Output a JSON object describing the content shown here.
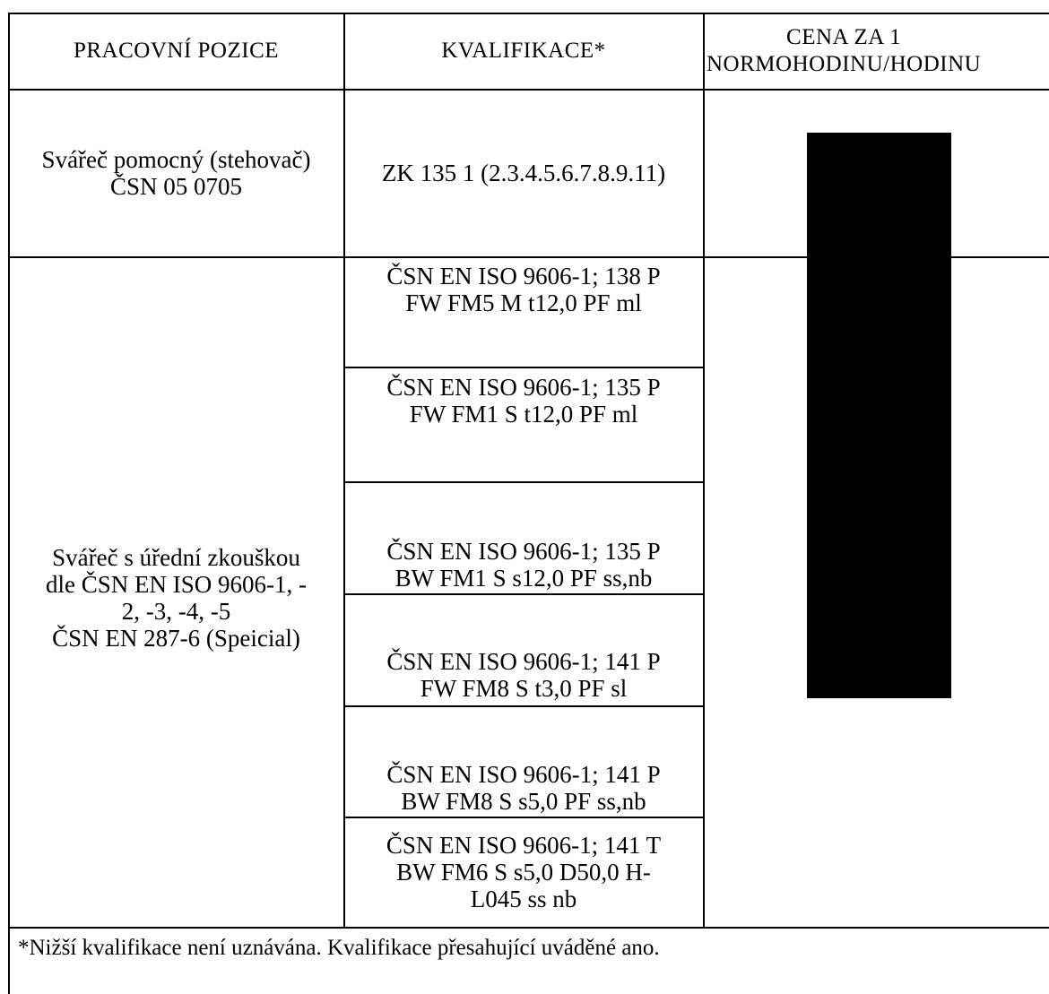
{
  "table": {
    "headers": {
      "position": "PRACOVNÍ POZICE",
      "qualification": "KVALIFIKACE*",
      "price": "CENA ZA 1\nNORMOHODINU/HODINU"
    },
    "rows": [
      {
        "position": "Svářeč pomocný (stehovač)\nČSN 05 0705",
        "qualifications": [
          "ZK 135 1 (2.3.4.5.6.7.8.9.11)"
        ]
      },
      {
        "position": "Svářeč s úřední zkouškou\ndle ČSN EN ISO 9606-1, -\n2, -3, -4, -5\nČSN EN 287-6   (Speicial)",
        "qualifications": [
          "ČSN EN ISO 9606-1; 138 P\nFW FM5 M t12,0 PF ml",
          "ČSN EN ISO 9606-1; 135 P\nFW FM1 S t12,0 PF ml",
          "ČSN EN ISO 9606-1; 135 P\nBW FM1 S s12,0 PF   ss,nb",
          "ČSN EN ISO 9606-1; 141 P\nFW FM8 S t3,0 PF sl",
          "ČSN EN ISO 9606-1; 141 P\nBW FM8 S s5,0 PF   ss,nb",
          "ČSN EN ISO 9606-1; 141 T\nBW FM6 S s5,0 D50,0 H-\nL045 ss nb"
        ]
      }
    ]
  },
  "footnote": "*Nižší kvalifikace není uznávána. Kvalifikace přesahující uváděné ano."
}
